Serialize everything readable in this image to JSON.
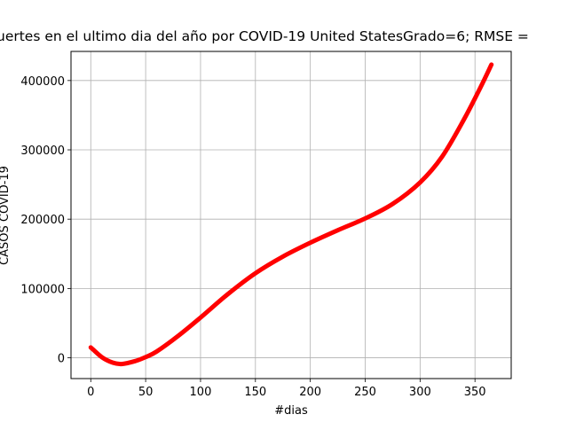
{
  "chart_data": {
    "type": "line",
    "title": "uertes  en el ultimo dia del  año por COVID-19 United StatesGrado=6; RMSE =",
    "xlabel": "#dias",
    "ylabel": "CASOS COVID-19",
    "xlim": [
      -18,
      383
    ],
    "ylim": [
      -30000,
      442000
    ],
    "xticks": [
      0,
      50,
      100,
      150,
      200,
      250,
      300,
      350
    ],
    "yticks": [
      0,
      100000,
      200000,
      300000,
      400000
    ],
    "grid": true,
    "series": [
      {
        "color": "#ff0000",
        "x": [
          0,
          10,
          20,
          28,
          40,
          50,
          60,
          80,
          100,
          125,
          150,
          175,
          200,
          225,
          250,
          275,
          300,
          320,
          340,
          355,
          365
        ],
        "y": [
          15000,
          1000,
          -7000,
          -9000,
          -5000,
          1000,
          9000,
          32000,
          58000,
          92000,
          122000,
          146000,
          166000,
          184000,
          201000,
          222000,
          253000,
          290000,
          344000,
          390000,
          423000
        ]
      }
    ]
  }
}
